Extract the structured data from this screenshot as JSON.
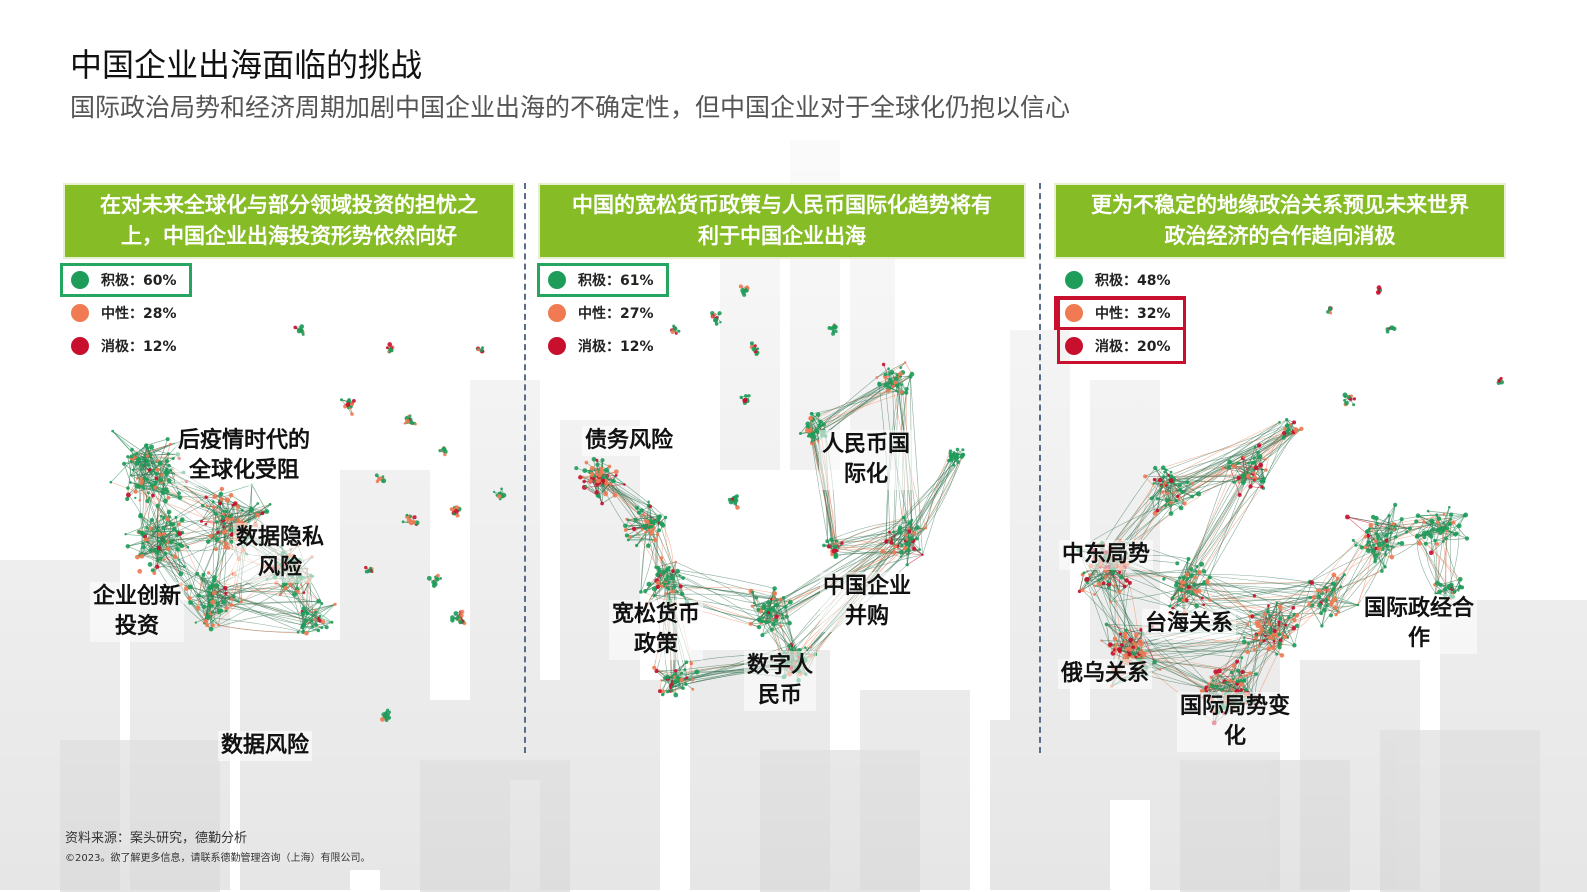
{
  "header": {
    "title": "中国企业出海面临的挑战",
    "subtitle": "国际政治局势和经济周期加剧中国企业出海的不确定性，但中国企业对于全球化仍抱以信心"
  },
  "colors": {
    "accent_green": "#86bc25",
    "positive": "#1e9c5a",
    "neutral": "#f07a52",
    "negative": "#c8102e",
    "network_edge": "#2e6e4a"
  },
  "panels": [
    {
      "header_line1": "在对未来全球化与部分领域投资的担忧之",
      "header_line2": "上，中国企业出海投资形势依然向好",
      "legend": [
        {
          "label": "积极：60%",
          "color": "#1e9c5a"
        },
        {
          "label": "中性：28%",
          "color": "#f07a52"
        },
        {
          "label": "消极：12%",
          "color": "#c8102e"
        }
      ],
      "highlight": "positive",
      "topics": [
        "后疫情时代的",
        "全球化受阻",
        "数据隐私",
        "风险",
        "企业创新",
        "投资",
        "数据风险"
      ]
    },
    {
      "header_line1": "中国的宽松货币政策与人民币国际化趋势将有",
      "header_line2": "利于中国企业出海",
      "legend": [
        {
          "label": "积极：61%",
          "color": "#1e9c5a"
        },
        {
          "label": "中性：27%",
          "color": "#f07a52"
        },
        {
          "label": "消极：12%",
          "color": "#c8102e"
        }
      ],
      "highlight": "positive",
      "topics": [
        "债务风险",
        "人民币国",
        "际化",
        "中国企业",
        "并购",
        "宽松货币",
        "政策",
        "数字人",
        "民币"
      ]
    },
    {
      "header_line1": "更为不稳定的地缘政治关系预见未来世界",
      "header_line2": "政治经济的合作趋向消极",
      "legend": [
        {
          "label": "积极：48%",
          "color": "#1e9c5a"
        },
        {
          "label": "中性：32%",
          "color": "#f07a52"
        },
        {
          "label": "消极：20%",
          "color": "#c8102e"
        }
      ],
      "highlight": "neutral_negative",
      "topics": [
        "中东局势",
        "台海关系",
        "国际政经合",
        "作",
        "俄乌关系",
        "国际局势变",
        "化"
      ]
    }
  ],
  "footer": {
    "source": "资料来源：案头研究，德勤分析",
    "copyright": "©2023。欲了解更多信息，请联系德勤管理咨询（上海）有限公司。"
  }
}
